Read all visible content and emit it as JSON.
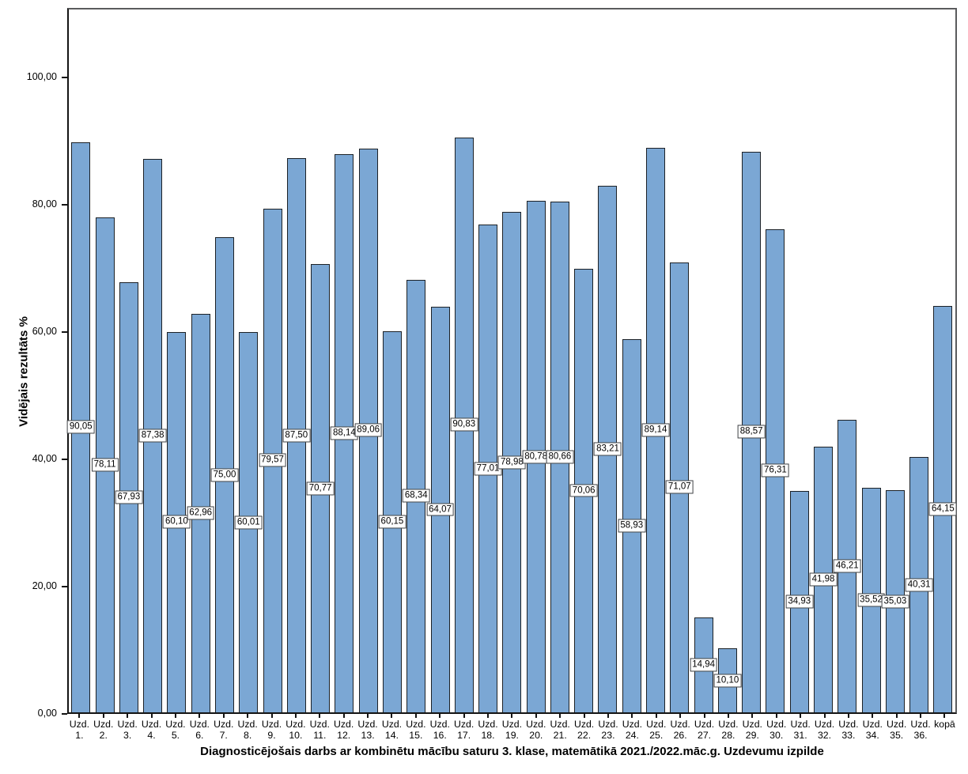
{
  "chart_data": {
    "type": "bar",
    "title": "Diagnosticējošais darbs ar kombinētu mācību saturu 3. klase, matemātikā 2021./2022.māc.g. Uzdevumu izpilde",
    "ylabel": "Vidējais rezultāts %",
    "xlabel": "",
    "grid": false,
    "legend": null,
    "ylim": [
      0,
      111
    ],
    "axis_max": 111,
    "categories": [
      "Uzd. 1.",
      "Uzd. 2.",
      "Uzd. 3.",
      "Uzd. 4.",
      "Uzd. 5.",
      "Uzd. 6.",
      "Uzd. 7.",
      "Uzd. 8.",
      "Uzd. 9.",
      "Uzd. 10.",
      "Uzd. 11.",
      "Uzd. 12.",
      "Uzd. 13.",
      "Uzd. 14.",
      "Uzd. 15.",
      "Uzd. 16.",
      "Uzd. 17.",
      "Uzd. 18.",
      "Uzd. 19.",
      "Uzd. 20.",
      "Uzd. 21.",
      "Uzd. 22.",
      "Uzd. 23.",
      "Uzd. 24.",
      "Uzd. 25.",
      "Uzd. 26.",
      "Uzd. 27.",
      "Uzd. 28.",
      "Uzd. 29.",
      "Uzd. 30.",
      "Uzd. 31.",
      "Uzd. 32.",
      "Uzd. 33.",
      "Uzd. 34.",
      "Uzd. 35.",
      "Uzd. 36.",
      "kopā"
    ],
    "category_lines": [
      [
        "Uzd.",
        "1."
      ],
      [
        "Uzd.",
        "2."
      ],
      [
        "Uzd.",
        "3."
      ],
      [
        "Uzd.",
        "4."
      ],
      [
        "Uzd.",
        "5."
      ],
      [
        "Uzd.",
        "6."
      ],
      [
        "Uzd.",
        "7."
      ],
      [
        "Uzd.",
        "8."
      ],
      [
        "Uzd.",
        "9."
      ],
      [
        "Uzd.",
        "10."
      ],
      [
        "Uzd.",
        "11."
      ],
      [
        "Uzd.",
        "12."
      ],
      [
        "Uzd.",
        "13."
      ],
      [
        "Uzd.",
        "14."
      ],
      [
        "Uzd.",
        "15."
      ],
      [
        "Uzd.",
        "16."
      ],
      [
        "Uzd.",
        "17."
      ],
      [
        "Uzd.",
        "18."
      ],
      [
        "Uzd.",
        "19."
      ],
      [
        "Uzd.",
        "20."
      ],
      [
        "Uzd.",
        "21."
      ],
      [
        "Uzd.",
        "22."
      ],
      [
        "Uzd.",
        "23."
      ],
      [
        "Uzd.",
        "24."
      ],
      [
        "Uzd.",
        "25."
      ],
      [
        "Uzd.",
        "26."
      ],
      [
        "Uzd.",
        "27."
      ],
      [
        "Uzd.",
        "28."
      ],
      [
        "Uzd.",
        "29."
      ],
      [
        "Uzd.",
        "30."
      ],
      [
        "Uzd.",
        "31."
      ],
      [
        "Uzd.",
        "32."
      ],
      [
        "Uzd.",
        "33."
      ],
      [
        "Uzd.",
        "34."
      ],
      [
        "Uzd.",
        "35."
      ],
      [
        "Uzd.",
        "36."
      ],
      [
        "kopā"
      ]
    ],
    "values": [
      90.05,
      78.11,
      67.93,
      87.38,
      60.1,
      62.96,
      75.0,
      60.01,
      79.57,
      87.5,
      70.77,
      88.14,
      89.06,
      60.15,
      68.34,
      64.07,
      90.83,
      77.01,
      78.98,
      80.78,
      80.66,
      70.06,
      83.21,
      58.93,
      89.14,
      71.07,
      14.94,
      10.1,
      88.57,
      76.31,
      34.93,
      41.98,
      46.21,
      35.52,
      35.03,
      40.31,
      64.15
    ],
    "value_labels": [
      "90,05",
      "78,11",
      "67,93",
      "87,38",
      "60,10",
      "62,96",
      "75,00",
      "60,01",
      "79,57",
      "87,50",
      "70,77",
      "88,14",
      "89,06",
      "60,15",
      "68,34",
      "64,07",
      "90,83",
      "77,01",
      "78,98",
      "80,78",
      "80,66",
      "70,06",
      "83,21",
      "58,93",
      "89,14",
      "71,07",
      "14,94",
      "10,10",
      "88,57",
      "76,31",
      "34,93",
      "41,98",
      "46,21",
      "35,52",
      "35,03",
      "40,31",
      "64,15"
    ],
    "yticks": [
      {
        "value": 0,
        "label": "0,00"
      },
      {
        "value": 20,
        "label": "20,00"
      },
      {
        "value": 40,
        "label": "40,00"
      },
      {
        "value": 60,
        "label": "60,00"
      },
      {
        "value": 80,
        "label": "80,00"
      },
      {
        "value": 100,
        "label": "100,00"
      }
    ],
    "colors": {
      "bar_fill": "#7BA7D4",
      "bar_border": "#1c2126",
      "axis": "#141414",
      "frame": "#5a5b5d",
      "label_box_bg": "#ffffff",
      "label_box_border": "#3f4245",
      "text": "#000000",
      "background": "#ffffff"
    }
  }
}
